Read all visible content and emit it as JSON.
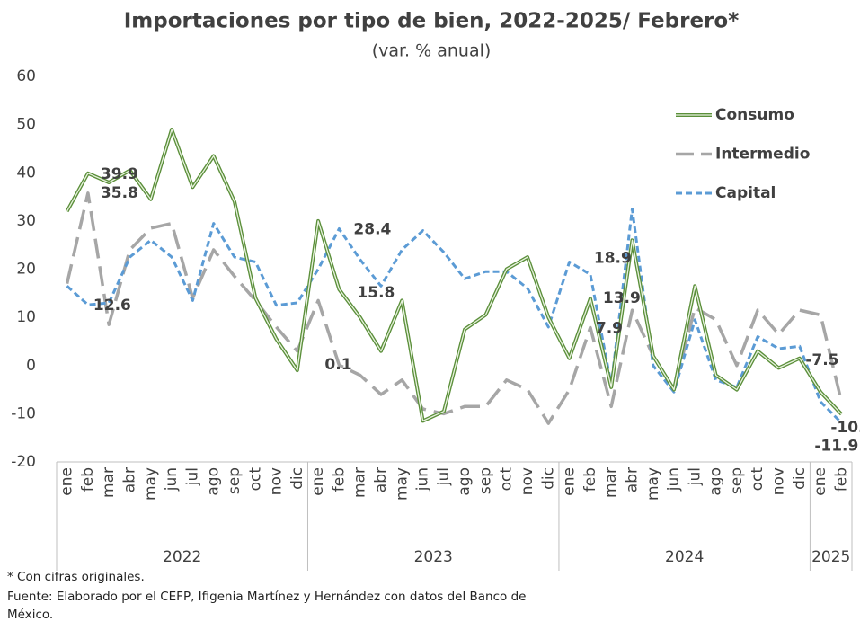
{
  "chart_data": {
    "type": "line",
    "title": "Importaciones por tipo de bien, 2022-2025/ Febrero*",
    "subtitle": "(var. % anual)",
    "categories": [
      "ene",
      "feb",
      "mar",
      "abr",
      "may",
      "jun",
      "jul",
      "ago",
      "sep",
      "oct",
      "nov",
      "dic",
      "ene",
      "feb",
      "mar",
      "abr",
      "may",
      "jun",
      "jul",
      "ago",
      "sep",
      "oct",
      "nov",
      "dic",
      "ene",
      "feb",
      "mar",
      "abr",
      "may",
      "jun",
      "jul",
      "ago",
      "sep",
      "oct",
      "nov",
      "dic",
      "ene",
      "feb"
    ],
    "groups": [
      {
        "label": "2022",
        "size": 12
      },
      {
        "label": "2023",
        "size": 12
      },
      {
        "label": "2024",
        "size": 12
      },
      {
        "label": "2025",
        "size": 2
      }
    ],
    "series": [
      {
        "name": "Consumo",
        "color": "#5b8f3a",
        "line_style": "double",
        "values": [
          32,
          39.9,
          38,
          40.5,
          34.5,
          49,
          37,
          43.5,
          34,
          14,
          5.5,
          -1,
          30,
          15.8,
          10,
          3,
          13.5,
          -11.5,
          -9.5,
          7.5,
          10.5,
          20,
          22.5,
          10,
          1.5,
          13.9,
          -4.5,
          26,
          2,
          -5,
          16.5,
          -2,
          -5,
          3,
          -0.5,
          1.5,
          -5.5,
          -10.1
        ],
        "value_labels": [
          null,
          "39.9",
          null,
          null,
          null,
          null,
          null,
          null,
          null,
          null,
          null,
          null,
          null,
          "15.8",
          null,
          null,
          null,
          null,
          null,
          null,
          null,
          null,
          null,
          null,
          null,
          "13.9",
          null,
          null,
          null,
          null,
          null,
          null,
          null,
          null,
          null,
          null,
          null,
          "-10.1"
        ],
        "label_color": "#4e7a27"
      },
      {
        "name": "Intermedio",
        "color": "#a6a6a6",
        "line_style": "dashed",
        "values": [
          17,
          35.8,
          8.5,
          24,
          28.5,
          29.5,
          14,
          24,
          18.5,
          13.5,
          8,
          3,
          13.5,
          0.1,
          -2,
          -6,
          -3,
          -9,
          -10,
          -8.5,
          -8.5,
          -3,
          -5,
          -12,
          -5,
          7.9,
          -8.5,
          11.5,
          2,
          -5,
          12,
          9.5,
          0,
          11.5,
          6.5,
          11.5,
          10.5,
          -7.5
        ],
        "value_labels": [
          null,
          "35.8",
          null,
          null,
          null,
          null,
          null,
          null,
          null,
          null,
          null,
          null,
          null,
          "0.1",
          null,
          null,
          null,
          null,
          null,
          null,
          null,
          null,
          null,
          null,
          null,
          "7.9",
          null,
          null,
          null,
          null,
          null,
          null,
          null,
          null,
          null,
          null,
          null,
          "-7.5"
        ],
        "label_color": "#9a9a9a"
      },
      {
        "name": "Capital",
        "color": "#5b9bd5",
        "line_style": "dotted",
        "values": [
          16.5,
          12.6,
          13,
          22.5,
          26,
          22.5,
          13.5,
          29.5,
          22.5,
          21.5,
          12.5,
          13,
          20,
          28.4,
          22,
          16.5,
          24,
          28,
          23.5,
          18,
          19.5,
          19.5,
          16,
          8,
          21.5,
          18.9,
          -4,
          32.5,
          0,
          -5.5,
          9.5,
          -3,
          -4.5,
          6,
          3.5,
          4,
          -7.5,
          -11.9
        ],
        "value_labels": [
          null,
          "12.6",
          null,
          null,
          null,
          null,
          null,
          null,
          null,
          null,
          null,
          null,
          null,
          "28.4",
          null,
          null,
          null,
          null,
          null,
          null,
          null,
          null,
          null,
          null,
          null,
          "18.9",
          null,
          null,
          null,
          null,
          null,
          null,
          null,
          null,
          null,
          null,
          null,
          "-11.9"
        ],
        "label_color": "#2f5597"
      }
    ],
    "ylim": [
      -20,
      60
    ],
    "yticks": [
      -20,
      -10,
      0,
      10,
      20,
      30,
      40,
      50,
      60
    ],
    "grid": false,
    "legend": "top-right",
    "notes": [
      "* Con cifras originales.",
      "Fuente: Elaborado por el CEFP, Ifigenia Martínez y Hernández con datos del Banco de",
      "México."
    ]
  }
}
